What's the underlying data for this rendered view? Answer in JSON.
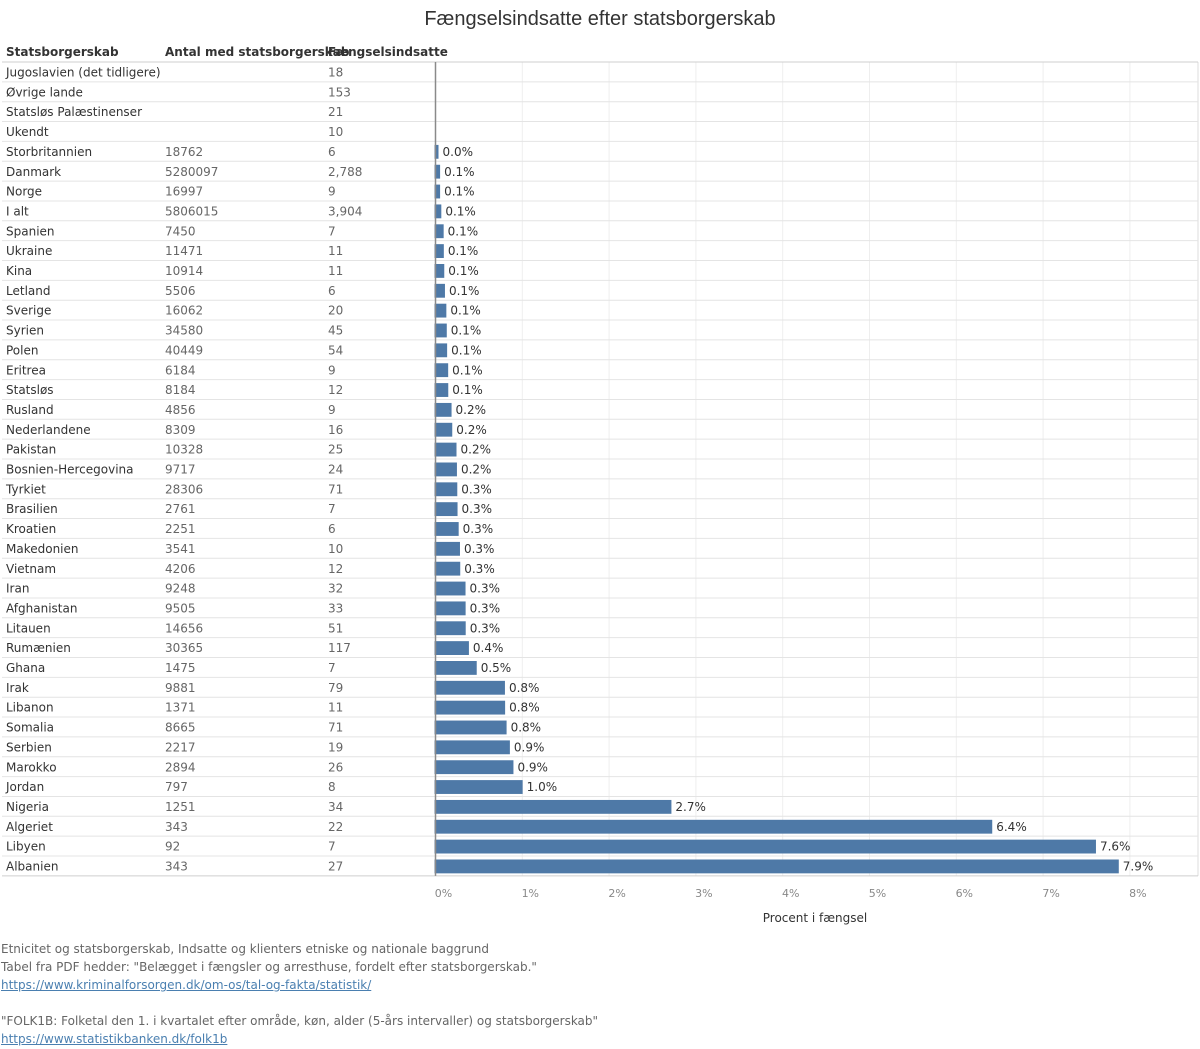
{
  "title": "Fængselsindsatte efter statsborgerskab",
  "columns": {
    "country": "Statsborgerskab",
    "population": "Antal med statsborgerskab",
    "prisoners": "Fængselsindsatte"
  },
  "chart_data": {
    "type": "bar",
    "orientation": "horizontal",
    "xlabel": "Procent i fængsel",
    "xlim": [
      0,
      8
    ],
    "x_ticks": [
      "0%",
      "1%",
      "2%",
      "3%",
      "4%",
      "5%",
      "6%",
      "7%",
      "8%"
    ],
    "bar_color": "#4e79a7",
    "rows": [
      {
        "country": "Jugoslavien (det tidligere)",
        "population": "",
        "prisoners": "18",
        "percent": null,
        "label": ""
      },
      {
        "country": "Øvrige lande",
        "population": "",
        "prisoners": "153",
        "percent": null,
        "label": ""
      },
      {
        "country": "Statsløs Palæstinenser",
        "population": "",
        "prisoners": "21",
        "percent": null,
        "label": ""
      },
      {
        "country": "Ukendt",
        "population": "",
        "prisoners": "10",
        "percent": null,
        "label": ""
      },
      {
        "country": "Storbritannien",
        "population": "18762",
        "prisoners": "6",
        "percent": 0.032,
        "label": "0.0%"
      },
      {
        "country": "Danmark",
        "population": "5280097",
        "prisoners": "2,788",
        "percent": 0.053,
        "label": "0.1%"
      },
      {
        "country": "Norge",
        "population": "16997",
        "prisoners": "9",
        "percent": 0.053,
        "label": "0.1%"
      },
      {
        "country": "I alt",
        "population": "5806015",
        "prisoners": "3,904",
        "percent": 0.067,
        "label": "0.1%"
      },
      {
        "country": "Spanien",
        "population": "7450",
        "prisoners": "7",
        "percent": 0.094,
        "label": "0.1%"
      },
      {
        "country": "Ukraine",
        "population": "11471",
        "prisoners": "11",
        "percent": 0.096,
        "label": "0.1%"
      },
      {
        "country": "Kina",
        "population": "10914",
        "prisoners": "11",
        "percent": 0.101,
        "label": "0.1%"
      },
      {
        "country": "Letland",
        "population": "5506",
        "prisoners": "6",
        "percent": 0.109,
        "label": "0.1%"
      },
      {
        "country": "Sverige",
        "population": "16062",
        "prisoners": "20",
        "percent": 0.125,
        "label": "0.1%"
      },
      {
        "country": "Syrien",
        "population": "34580",
        "prisoners": "45",
        "percent": 0.13,
        "label": "0.1%"
      },
      {
        "country": "Polen",
        "population": "40449",
        "prisoners": "54",
        "percent": 0.134,
        "label": "0.1%"
      },
      {
        "country": "Eritrea",
        "population": "6184",
        "prisoners": "9",
        "percent": 0.146,
        "label": "0.1%"
      },
      {
        "country": "Statsløs",
        "population": "8184",
        "prisoners": "12",
        "percent": 0.147,
        "label": "0.1%"
      },
      {
        "country": "Rusland",
        "population": "4856",
        "prisoners": "9",
        "percent": 0.185,
        "label": "0.2%"
      },
      {
        "country": "Nederlandene",
        "population": "8309",
        "prisoners": "16",
        "percent": 0.193,
        "label": "0.2%"
      },
      {
        "country": "Pakistan",
        "population": "10328",
        "prisoners": "25",
        "percent": 0.242,
        "label": "0.2%"
      },
      {
        "country": "Bosnien-Hercegovina",
        "population": "9717",
        "prisoners": "24",
        "percent": 0.247,
        "label": "0.2%"
      },
      {
        "country": "Tyrkiet",
        "population": "28306",
        "prisoners": "71",
        "percent": 0.251,
        "label": "0.3%"
      },
      {
        "country": "Brasilien",
        "population": "2761",
        "prisoners": "7",
        "percent": 0.254,
        "label": "0.3%"
      },
      {
        "country": "Kroatien",
        "population": "2251",
        "prisoners": "6",
        "percent": 0.267,
        "label": "0.3%"
      },
      {
        "country": "Makedonien",
        "population": "3541",
        "prisoners": "10",
        "percent": 0.282,
        "label": "0.3%"
      },
      {
        "country": "Vietnam",
        "population": "4206",
        "prisoners": "12",
        "percent": 0.285,
        "label": "0.3%"
      },
      {
        "country": "Iran",
        "population": "9248",
        "prisoners": "32",
        "percent": 0.346,
        "label": "0.3%"
      },
      {
        "country": "Afghanistan",
        "population": "9505",
        "prisoners": "33",
        "percent": 0.347,
        "label": "0.3%"
      },
      {
        "country": "Litauen",
        "population": "14656",
        "prisoners": "51",
        "percent": 0.348,
        "label": "0.3%"
      },
      {
        "country": "Rumænien",
        "population": "30365",
        "prisoners": "117",
        "percent": 0.385,
        "label": "0.4%"
      },
      {
        "country": "Ghana",
        "population": "1475",
        "prisoners": "7",
        "percent": 0.475,
        "label": "0.5%"
      },
      {
        "country": "Irak",
        "population": "9881",
        "prisoners": "79",
        "percent": 0.8,
        "label": "0.8%"
      },
      {
        "country": "Libanon",
        "population": "1371",
        "prisoners": "11",
        "percent": 0.802,
        "label": "0.8%"
      },
      {
        "country": "Somalia",
        "population": "8665",
        "prisoners": "71",
        "percent": 0.819,
        "label": "0.8%"
      },
      {
        "country": "Serbien",
        "population": "2217",
        "prisoners": "19",
        "percent": 0.857,
        "label": "0.9%"
      },
      {
        "country": "Marokko",
        "population": "2894",
        "prisoners": "26",
        "percent": 0.898,
        "label": "0.9%"
      },
      {
        "country": "Jordan",
        "population": "797",
        "prisoners": "8",
        "percent": 1.004,
        "label": "1.0%"
      },
      {
        "country": "Nigeria",
        "population": "1251",
        "prisoners": "34",
        "percent": 2.718,
        "label": "2.7%"
      },
      {
        "country": "Algeriet",
        "population": "343",
        "prisoners": "22",
        "percent": 6.414,
        "label": "6.4%"
      },
      {
        "country": "Libyen",
        "population": "92",
        "prisoners": "7",
        "percent": 7.609,
        "label": "7.6%"
      },
      {
        "country": "Albanien",
        "population": "343",
        "prisoners": "27",
        "percent": 7.872,
        "label": "7.9%"
      }
    ]
  },
  "footer": {
    "line1": "Etnicitet og statsborgerskab, Indsatte og klienters etniske og nationale baggrund",
    "line2": "Tabel fra PDF hedder: \"Belægget i fængsler og arresthuse, fordelt efter statsborgerskab.\"",
    "link1": "https://www.kriminalforsorgen.dk/om-os/tal-og-fakta/statistik/",
    "line3": "\"FOLK1B: Folketal den 1. i kvartalet efter område, køn, alder (5-års intervaller) og statsborgerskab\"",
    "link2": "https://www.statistikbanken.dk/folk1b"
  }
}
